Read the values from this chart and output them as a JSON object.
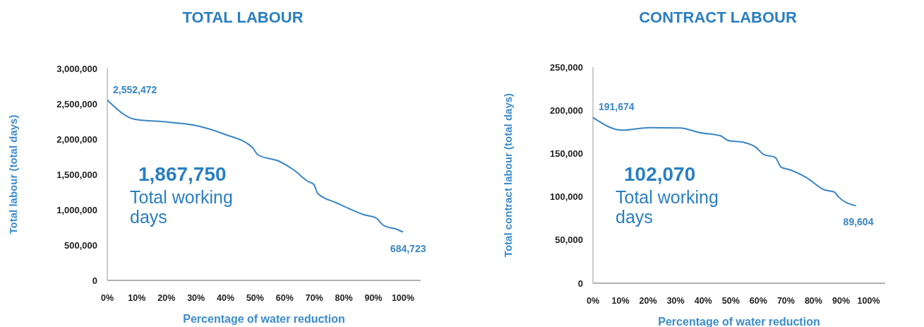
{
  "chart_data": [
    {
      "type": "line",
      "title": "TOTAL LABOUR",
      "xlabel": "Percentage of water reduction",
      "ylabel": "Total labour (total days)",
      "color": "#3a86c4",
      "x": [
        0,
        9.4,
        20.8,
        30.2,
        39.6,
        49.1,
        50.9,
        58.5,
        63.2,
        67.9,
        69.8,
        71.2,
        77.4,
        86.8,
        91.0,
        93.4,
        98.1,
        100
      ],
      "values": [
        2552472,
        2280000,
        2240000,
        2190000,
        2070000,
        1880000,
        1780000,
        1680000,
        1560000,
        1400000,
        1360000,
        1230000,
        1100000,
        930000,
        880000,
        780000,
        720000,
        684723
      ],
      "xlim": [
        0,
        106
      ],
      "xticks": [
        {
          "value": 0,
          "label": "0%"
        },
        {
          "value": 10,
          "label": "10%"
        },
        {
          "value": 20,
          "label": "20%"
        },
        {
          "value": 30,
          "label": "30%"
        },
        {
          "value": 40,
          "label": "40%"
        },
        {
          "value": 50,
          "label": "50%"
        },
        {
          "value": 60,
          "label": "60%"
        },
        {
          "value": 70,
          "label": "70%"
        },
        {
          "value": 80,
          "label": "80%"
        },
        {
          "value": 90,
          "label": "90%"
        },
        {
          "value": 100,
          "label": "100%"
        }
      ],
      "ylim": [
        0,
        3000000
      ],
      "yticks": [
        0,
        {
          "value": 500000,
          "label": "500,000"
        },
        {
          "value": 1000000,
          "label": "1,000,000"
        },
        {
          "value": 1500000,
          "label": "1,500,000"
        },
        {
          "value": 2000000,
          "label": "2,000,000"
        },
        {
          "value": 2500000,
          "label": "2,500,000"
        },
        {
          "value": 3000000,
          "label": "3,000,000"
        }
      ],
      "annotations": [
        {
          "text": "2,552,472",
          "x": 0,
          "y": 2552472
        },
        {
          "text": "684,723",
          "x": 100,
          "y": 684723
        },
        "1,867,750",
        "Total working days"
      ]
    },
    {
      "type": "line",
      "title": "CONTRACT LABOUR",
      "xlabel": "Percentage of water reduction",
      "ylabel": "Total contract labour (total days)",
      "color": "#3a86c4",
      "x": [
        0,
        10.6,
        20.6,
        31.7,
        39.0,
        46.3,
        49.1,
        54.6,
        59.2,
        61.9,
        66.1,
        68.3,
        71.1,
        77.5,
        83.9,
        87.6,
        89.0,
        95.4
      ],
      "values": [
        191674,
        177000,
        180000,
        179500,
        174000,
        170500,
        165000,
        163000,
        157000,
        149000,
        145500,
        134000,
        131500,
        122000,
        108000,
        105500,
        100000,
        89604
      ],
      "xlim": [
        0,
        106
      ],
      "xticks": [
        {
          "value": 0,
          "label": "0%"
        },
        {
          "value": 10,
          "label": "10%"
        },
        {
          "value": 20,
          "label": "20%"
        },
        {
          "value": 30,
          "label": "30%"
        },
        {
          "value": 40,
          "label": "40%"
        },
        {
          "value": 50,
          "label": "50%"
        },
        {
          "value": 60,
          "label": "60%"
        },
        {
          "value": 70,
          "label": "70%"
        },
        {
          "value": 80,
          "label": "80%"
        },
        {
          "value": 90,
          "label": "90%"
        },
        {
          "value": 100,
          "label": "100%"
        }
      ],
      "ylim": [
        0,
        250000
      ],
      "yticks": [
        0,
        {
          "value": 50000,
          "label": "50,000"
        },
        {
          "value": 100000,
          "label": "100,000"
        },
        {
          "value": 150000,
          "label": "150,000"
        },
        {
          "value": 200000,
          "label": "200,000"
        },
        {
          "value": 250000,
          "label": "250,000"
        }
      ],
      "annotations": [
        {
          "text": "191,674",
          "x": 0,
          "y": 191674
        },
        {
          "text": "89,604",
          "x": 95.4,
          "y": 89604
        },
        "102,070",
        "Total working days"
      ]
    }
  ]
}
